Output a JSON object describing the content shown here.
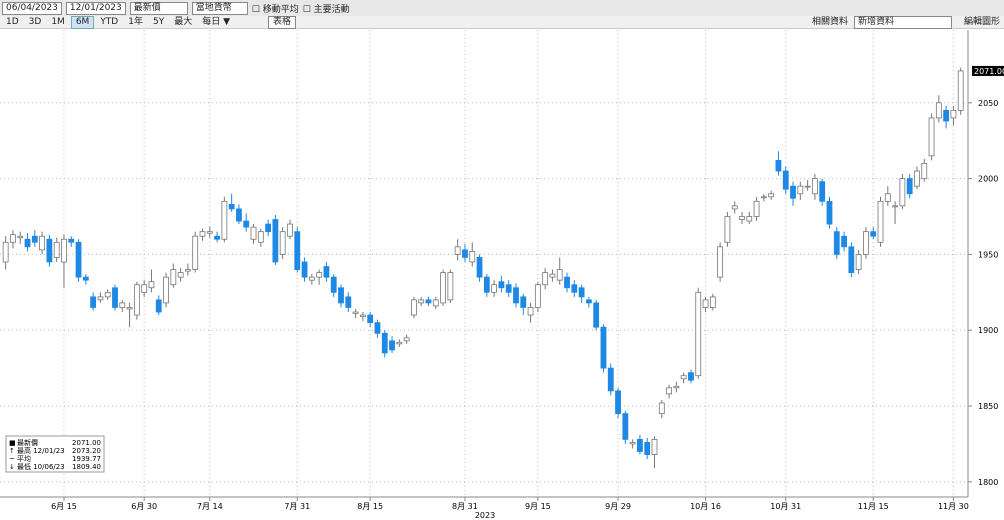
{
  "toolbar": {
    "start_date": "06/04/2023",
    "end_date": "12/01/2023",
    "field": "最新價",
    "currency": "當地貨幣",
    "moving_average": "移動平均",
    "events": "主要活動",
    "periods": [
      "1D",
      "3D",
      "1M",
      "6M",
      "YTD",
      "1年",
      "5Y",
      "最大",
      "每日 ▼"
    ],
    "table": "表格",
    "related": "相關資料",
    "add_data": "新增資料",
    "edit_chart": "編輯圖形"
  },
  "legend": {
    "rows": [
      {
        "label": "最新價",
        "value": "2071.00"
      },
      {
        "label": "最高 12/01/23",
        "value": "2073.20"
      },
      {
        "label": "平均",
        "value": "1939.77"
      },
      {
        "label": "最低 10/06/23",
        "value": "1809.40"
      }
    ]
  },
  "chart_data": {
    "type": "candlestick",
    "up_color": "#ffffff",
    "down_color": "#1e88e5",
    "last_label": "2071.00",
    "year_label": "2023",
    "ylim": [
      1790,
      2098
    ],
    "yticks": [
      1800,
      1850,
      1900,
      1950,
      2000,
      2050
    ],
    "grid": true,
    "xlim": [
      -0.5,
      132
    ],
    "xticks": [
      {
        "value": 8,
        "label": "6月 15"
      },
      {
        "value": 19,
        "label": "6月 30"
      },
      {
        "value": 28,
        "label": "7月 14"
      },
      {
        "value": 40,
        "label": "7月 31"
      },
      {
        "value": 50,
        "label": "8月 15"
      },
      {
        "value": 63,
        "label": "8月 31"
      },
      {
        "value": 73,
        "label": "9月 15"
      },
      {
        "value": 84,
        "label": "9月 29"
      },
      {
        "value": 96,
        "label": "10月 16"
      },
      {
        "value": 107,
        "label": "10月 31"
      },
      {
        "value": 119,
        "label": "11月 15"
      },
      {
        "value": 130,
        "label": "11月 30"
      }
    ],
    "candles": [
      [
        1945,
        1962,
        1940,
        1958
      ],
      [
        1958,
        1966,
        1954,
        1963
      ],
      [
        1961,
        1965,
        1957,
        1962
      ],
      [
        1960,
        1964,
        1952,
        1955
      ],
      [
        1962,
        1966,
        1955,
        1958
      ],
      [
        1953,
        1965,
        1950,
        1962
      ],
      [
        1960,
        1963,
        1942,
        1945
      ],
      [
        1948,
        1961,
        1945,
        1958
      ],
      [
        1945,
        1963,
        1928,
        1960
      ],
      [
        1960,
        1962,
        1955,
        1958
      ],
      [
        1958,
        1960,
        1932,
        1935
      ],
      [
        1935,
        1937,
        1930,
        1933
      ],
      [
        1922,
        1925,
        1913,
        1915
      ],
      [
        1920,
        1925,
        1918,
        1922
      ],
      [
        1922,
        1927,
        1920,
        1925
      ],
      [
        1928,
        1930,
        1913,
        1915
      ],
      [
        1915,
        1920,
        1912,
        1918
      ],
      [
        1914,
        1918,
        1902,
        1915
      ],
      [
        1910,
        1932,
        1907,
        1930
      ],
      [
        1925,
        1933,
        1922,
        1930
      ],
      [
        1928,
        1940,
        1925,
        1932
      ],
      [
        1920,
        1923,
        1910,
        1912
      ],
      [
        1918,
        1938,
        1915,
        1935
      ],
      [
        1930,
        1944,
        1928,
        1940
      ],
      [
        1935,
        1941,
        1932,
        1938
      ],
      [
        1939,
        1944,
        1936,
        1940
      ],
      [
        1940,
        1965,
        1938,
        1962
      ],
      [
        1962,
        1967,
        1959,
        1965
      ],
      [
        1964,
        1968,
        1961,
        1965
      ],
      [
        1962,
        1965,
        1958,
        1960
      ],
      [
        1960,
        1988,
        1958,
        1985
      ],
      [
        1983,
        1990,
        1978,
        1980
      ],
      [
        1980,
        1983,
        1970,
        1972
      ],
      [
        1972,
        1977,
        1965,
        1968
      ],
      [
        1960,
        1970,
        1957,
        1968
      ],
      [
        1958,
        1967,
        1955,
        1965
      ],
      [
        1970,
        1973,
        1962,
        1965
      ],
      [
        1973,
        1976,
        1943,
        1945
      ],
      [
        1950,
        1968,
        1947,
        1965
      ],
      [
        1962,
        1973,
        1960,
        1970
      ],
      [
        1965,
        1968,
        1938,
        1940
      ],
      [
        1945,
        1948,
        1932,
        1935
      ],
      [
        1933,
        1937,
        1930,
        1935
      ],
      [
        1935,
        1940,
        1930,
        1938
      ],
      [
        1942,
        1945,
        1932,
        1935
      ],
      [
        1935,
        1937,
        1922,
        1925
      ],
      [
        1928,
        1930,
        1915,
        1918
      ],
      [
        1922,
        1925,
        1912,
        1915
      ],
      [
        1911,
        1914,
        1908,
        1912
      ],
      [
        1909,
        1912,
        1906,
        1910
      ],
      [
        1910,
        1912,
        1902,
        1905
      ],
      [
        1905,
        1907,
        1895,
        1898
      ],
      [
        1898,
        1900,
        1882,
        1885
      ],
      [
        1893,
        1896,
        1885,
        1887
      ],
      [
        1891,
        1894,
        1889,
        1892
      ],
      [
        1893,
        1897,
        1891,
        1895
      ],
      [
        1910,
        1922,
        1908,
        1920
      ],
      [
        1918,
        1922,
        1916,
        1920
      ],
      [
        1920,
        1922,
        1916,
        1918
      ],
      [
        1916,
        1922,
        1914,
        1920
      ],
      [
        1918,
        1940,
        1916,
        1938
      ],
      [
        1920,
        1940,
        1918,
        1938
      ],
      [
        1950,
        1960,
        1946,
        1955
      ],
      [
        1953,
        1957,
        1945,
        1948
      ],
      [
        1945,
        1958,
        1942,
        1952
      ],
      [
        1948,
        1950,
        1932,
        1935
      ],
      [
        1935,
        1937,
        1922,
        1925
      ],
      [
        1925,
        1933,
        1922,
        1930
      ],
      [
        1932,
        1936,
        1925,
        1928
      ],
      [
        1930,
        1933,
        1922,
        1925
      ],
      [
        1928,
        1931,
        1915,
        1918
      ],
      [
        1922,
        1924,
        1910,
        1915
      ],
      [
        1910,
        1918,
        1905,
        1915
      ],
      [
        1915,
        1932,
        1912,
        1930
      ],
      [
        1930,
        1941,
        1927,
        1938
      ],
      [
        1935,
        1940,
        1932,
        1937
      ],
      [
        1933,
        1948,
        1930,
        1940
      ],
      [
        1935,
        1938,
        1925,
        1928
      ],
      [
        1930,
        1933,
        1922,
        1925
      ],
      [
        1928,
        1930,
        1918,
        1922
      ],
      [
        1920,
        1922,
        1915,
        1918
      ],
      [
        1918,
        1920,
        1900,
        1902
      ],
      [
        1902,
        1904,
        1872,
        1875
      ],
      [
        1875,
        1878,
        1857,
        1860
      ],
      [
        1860,
        1862,
        1842,
        1845
      ],
      [
        1845,
        1847,
        1825,
        1828
      ],
      [
        1825,
        1828,
        1822,
        1826
      ],
      [
        1828,
        1831,
        1818,
        1820
      ],
      [
        1826,
        1829,
        1815,
        1818
      ],
      [
        1818,
        1830,
        1809,
        1828
      ],
      [
        1845,
        1854,
        1842,
        1852
      ],
      [
        1858,
        1864,
        1855,
        1862
      ],
      [
        1862,
        1866,
        1859,
        1863
      ],
      [
        1868,
        1872,
        1865,
        1870
      ],
      [
        1872,
        1874,
        1865,
        1867
      ],
      [
        1870,
        1928,
        1868,
        1925
      ],
      [
        1915,
        1922,
        1912,
        1920
      ],
      [
        1915,
        1924,
        1913,
        1922
      ],
      [
        1935,
        1958,
        1932,
        1955
      ],
      [
        1958,
        1978,
        1955,
        1975
      ],
      [
        1980,
        1985,
        1977,
        1982
      ],
      [
        1973,
        1978,
        1970,
        1975
      ],
      [
        1972,
        1978,
        1970,
        1975
      ],
      [
        1975,
        1988,
        1972,
        1985
      ],
      [
        1988,
        1990,
        1985,
        1988
      ],
      [
        1988,
        1992,
        1986,
        1990
      ],
      [
        2012,
        2018,
        2002,
        2005
      ],
      [
        2005,
        2008,
        1990,
        1993
      ],
      [
        1995,
        1998,
        1982,
        1987
      ],
      [
        1990,
        1998,
        1986,
        1995
      ],
      [
        1995,
        1999,
        1992,
        1995
      ],
      [
        1990,
        2003,
        1986,
        2000
      ],
      [
        1998,
        2000,
        1982,
        1985
      ],
      [
        1985,
        1988,
        1967,
        1970
      ],
      [
        1965,
        1968,
        1947,
        1950
      ],
      [
        1962,
        1965,
        1952,
        1955
      ],
      [
        1955,
        1958,
        1935,
        1938
      ],
      [
        1940,
        1953,
        1937,
        1950
      ],
      [
        1950,
        1968,
        1947,
        1965
      ],
      [
        1965,
        1968,
        1960,
        1962
      ],
      [
        1958,
        1988,
        1955,
        1985
      ],
      [
        1985,
        1995,
        1982,
        1990
      ],
      [
        1982,
        1985,
        1970,
        1982
      ],
      [
        1982,
        2003,
        1980,
        2000
      ],
      [
        2000,
        2003,
        1987,
        1990
      ],
      [
        1995,
        2008,
        1993,
        2005
      ],
      [
        2000,
        2013,
        1998,
        2010
      ],
      [
        2015,
        2043,
        2012,
        2040
      ],
      [
        2040,
        2055,
        2037,
        2050
      ],
      [
        2045,
        2048,
        2033,
        2038
      ],
      [
        2040,
        2048,
        2035,
        2045
      ],
      [
        2045,
        2073.2,
        2042,
        2071
      ]
    ]
  }
}
